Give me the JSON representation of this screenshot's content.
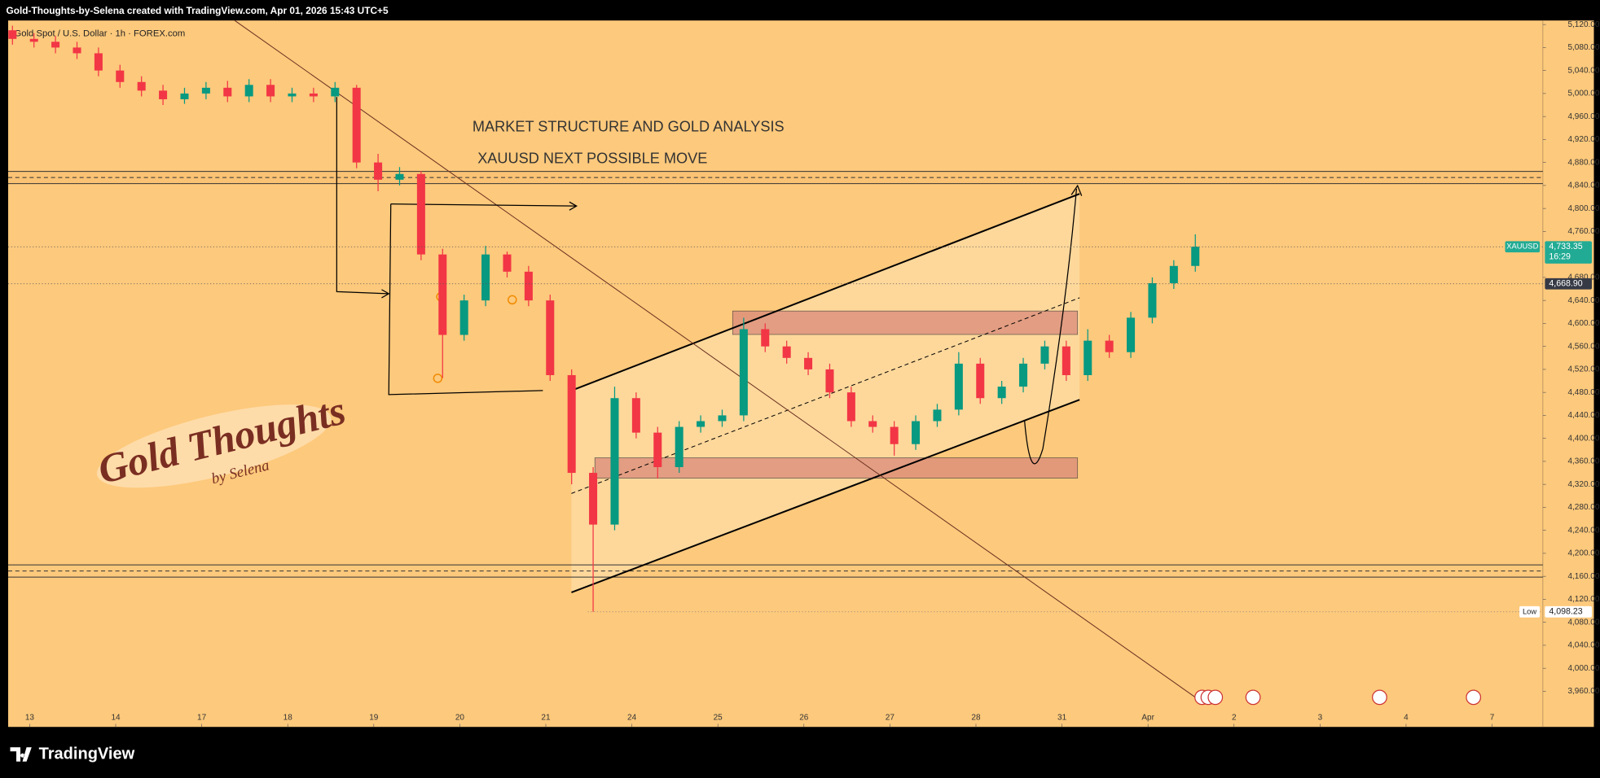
{
  "header": {
    "title": "Gold-Thoughts-by-Selena created with TradingView.com, Apr 01, 2026 15:43 UTC+5"
  },
  "footer": {
    "brand": "TradingView"
  },
  "watermark": {
    "line1": "Gold Thoughts",
    "line2": "by Selena"
  },
  "chart_data": {
    "type": "candlestick",
    "title": "Gold Spot / U.S. Dollar · 1h · FOREX.com",
    "annotations": [
      "MARKET STRUCTURE AND GOLD ANALYSIS",
      "XAUUSD NEXT POSSIBLE MOVE"
    ],
    "up_color": "#089981",
    "down_color": "#f23645",
    "xlim": [
      -0.25,
      17.59
    ],
    "xticks": [
      {
        "value": 0,
        "label": "13"
      },
      {
        "value": 1,
        "label": "14"
      },
      {
        "value": 2,
        "label": "17"
      },
      {
        "value": 3,
        "label": "18"
      },
      {
        "value": 4,
        "label": "19"
      },
      {
        "value": 5,
        "label": "20"
      },
      {
        "value": 6,
        "label": "21"
      },
      {
        "value": 7,
        "label": "24"
      },
      {
        "value": 8,
        "label": "25"
      },
      {
        "value": 9,
        "label": "26"
      },
      {
        "value": 10,
        "label": "27"
      },
      {
        "value": 11,
        "label": "28"
      },
      {
        "value": 12,
        "label": "31"
      },
      {
        "value": 13,
        "label": "Apr"
      },
      {
        "value": 14,
        "label": "2"
      },
      {
        "value": 15,
        "label": "3"
      },
      {
        "value": 16,
        "label": "4"
      },
      {
        "value": 17,
        "label": "7"
      }
    ],
    "ylim": [
      3898,
      5127
    ],
    "yticks": [
      {
        "value": 5120,
        "label": "5,120.00"
      },
      {
        "value": 5080,
        "label": "5,080.00"
      },
      {
        "value": 5040,
        "label": "5,040.00"
      },
      {
        "value": 5000,
        "label": "5,000.00"
      },
      {
        "value": 4960,
        "label": "4,960.00"
      },
      {
        "value": 4920,
        "label": "4,920.00"
      },
      {
        "value": 4880,
        "label": "4,880.00"
      },
      {
        "value": 4840,
        "label": "4,840.00"
      },
      {
        "value": 4800,
        "label": "4,800.00"
      },
      {
        "value": 4760,
        "label": "4,760.00"
      },
      {
        "value": 4680,
        "label": "4,680.00"
      },
      {
        "value": 4640,
        "label": "4,640.00"
      },
      {
        "value": 4600,
        "label": "4,600.00"
      },
      {
        "value": 4560,
        "label": "4,560.00"
      },
      {
        "value": 4520,
        "label": "4,520.00"
      },
      {
        "value": 4480,
        "label": "4,480.00"
      },
      {
        "value": 4440,
        "label": "4,440.00"
      },
      {
        "value": 4400,
        "label": "4,400.00"
      },
      {
        "value": 4360,
        "label": "4,360.00"
      },
      {
        "value": 4320,
        "label": "4,320.00"
      },
      {
        "value": 4280,
        "label": "4,280.00"
      },
      {
        "value": 4240,
        "label": "4,240.00"
      },
      {
        "value": 4200,
        "label": "4,200.00"
      },
      {
        "value": 4160,
        "label": "4,160.00"
      },
      {
        "value": 4120,
        "label": "4,120.00"
      },
      {
        "value": 4080,
        "label": "4,080.00"
      },
      {
        "value": 4040,
        "label": "4,040.00"
      },
      {
        "value": 4000,
        "label": "4,000.00"
      },
      {
        "value": 3960,
        "label": "3,960.00"
      }
    ],
    "price_tags": [
      {
        "name": "XAUUSD",
        "value": 4733.35,
        "label": "4,733.35",
        "sub": "16:29",
        "color": "#22ab94"
      },
      {
        "value": 4668.9,
        "label": "4,668.90",
        "color": "#363a45"
      },
      {
        "name": "Low",
        "value": 4098.23,
        "label": "4,098.23",
        "color": "#ffffff"
      }
    ],
    "x": [
      -0.2,
      0.05,
      0.3,
      0.55,
      0.8,
      1.05,
      1.3,
      1.55,
      1.8,
      2.05,
      2.3,
      2.55,
      2.8,
      3.05,
      3.3,
      3.55,
      3.8,
      4.05,
      4.3,
      4.55,
      4.8,
      5.05,
      5.3,
      5.55,
      5.8,
      6.05,
      6.3,
      6.55,
      6.8,
      7.05,
      7.3,
      7.55,
      7.8,
      8.05,
      8.3,
      8.55,
      8.8,
      9.05,
      9.3,
      9.55,
      9.8,
      10.05,
      10.3,
      10.55,
      10.8,
      11.05,
      11.3,
      11.55,
      11.8,
      12.05,
      12.3,
      12.55,
      12.8,
      13.05,
      13.3,
      13.55
    ],
    "open": [
      5110,
      5095,
      5090,
      5080,
      5070,
      5040,
      5020,
      5005,
      4990,
      5000,
      5010,
      4995,
      5015,
      4995,
      5000,
      4995,
      5010,
      4880,
      4850,
      4860,
      4720,
      4580,
      4640,
      4720,
      4690,
      4640,
      4510,
      4340,
      4250,
      4470,
      4410,
      4350,
      4420,
      4430,
      4440,
      4590,
      4560,
      4540,
      4520,
      4480,
      4430,
      4420,
      4390,
      4430,
      4450,
      4530,
      4470,
      4490,
      4530,
      4560,
      4510,
      4570,
      4550,
      4610,
      4670,
      4700
    ],
    "high": [
      5118,
      5105,
      5100,
      5090,
      5080,
      5050,
      5030,
      5015,
      5010,
      5020,
      5022,
      5025,
      5025,
      5010,
      5010,
      5020,
      5015,
      4895,
      4872,
      4865,
      4730,
      4650,
      4735,
      4725,
      4700,
      4650,
      4520,
      4350,
      4490,
      4480,
      4420,
      4430,
      4440,
      4450,
      4610,
      4600,
      4570,
      4550,
      4530,
      4490,
      4440,
      4430,
      4440,
      4460,
      4550,
      4540,
      4500,
      4540,
      4570,
      4570,
      4590,
      4580,
      4620,
      4680,
      4710,
      4755
    ],
    "low": [
      5085,
      5080,
      5070,
      5060,
      5030,
      5010,
      4995,
      4980,
      4982,
      4990,
      4985,
      4985,
      4985,
      4985,
      4985,
      4985,
      4870,
      4830,
      4840,
      4710,
      4505,
      4570,
      4630,
      4680,
      4630,
      4500,
      4320,
      4098.23,
      4240,
      4400,
      4330,
      4340,
      4410,
      4420,
      4430,
      4550,
      4530,
      4510,
      4470,
      4420,
      4410,
      4370,
      4380,
      4420,
      4440,
      4460,
      4460,
      4480,
      4520,
      4500,
      4500,
      4540,
      4540,
      4600,
      4660,
      4690
    ],
    "close": [
      5095,
      5090,
      5080,
      5070,
      5040,
      5020,
      5005,
      4990,
      5000,
      5010,
      4995,
      5015,
      4995,
      5000,
      4995,
      5010,
      4880,
      4850,
      4860,
      4720,
      4580,
      4640,
      4720,
      4690,
      4640,
      4510,
      4340,
      4250,
      4470,
      4410,
      4350,
      4420,
      4430,
      4440,
      4590,
      4560,
      4540,
      4520,
      4480,
      4430,
      4420,
      4390,
      4430,
      4450,
      4530,
      4470,
      4490,
      4530,
      4560,
      4510,
      4570,
      4550,
      4610,
      4670,
      4700,
      4733.35
    ]
  }
}
